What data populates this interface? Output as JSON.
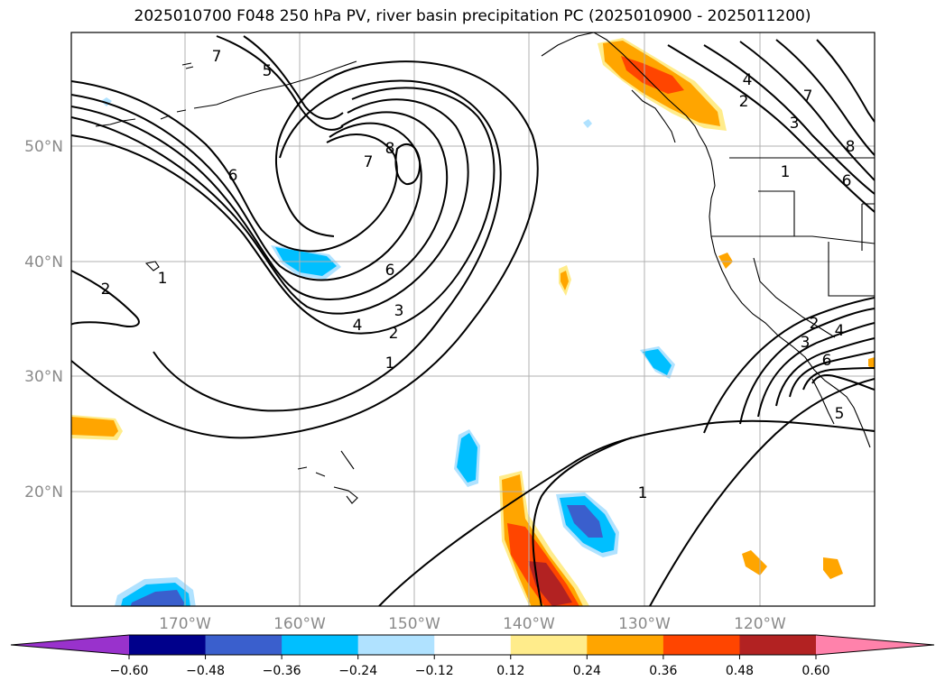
{
  "title": "2025010700 F048 250 hPa PV, river basin precipitation PC (2025010900 - 2025011200)",
  "map": {
    "lat_labels": [
      "50°N",
      "40°N",
      "30°N",
      "20°N"
    ],
    "lon_labels": [
      "170°W",
      "160°W",
      "150°W",
      "140°W",
      "130°W",
      "120°W"
    ],
    "contour_labels": [
      "7",
      "5",
      "8",
      "7",
      "6",
      "2",
      "1",
      "6",
      "4",
      "3",
      "2",
      "1",
      "1",
      "4",
      "2",
      "3",
      "1",
      "7",
      "6",
      "8",
      "2",
      "4",
      "6",
      "5",
      "3"
    ]
  },
  "colorbar": {
    "colors": [
      "#9932cc",
      "#00008b",
      "#3a5fcd",
      "#00bfff",
      "#b0e2ff",
      "#ffffff",
      "#ffec8b",
      "#ffa500",
      "#ff4500",
      "#b22222",
      "#ff82ab"
    ],
    "tick_labels": [
      "−0.60",
      "−0.48",
      "−0.36",
      "−0.24",
      "−0.12",
      "0.12",
      "0.24",
      "0.36",
      "0.48",
      "0.60"
    ]
  },
  "colors": {
    "pv_contour": "#000000",
    "grid": "#b0b0b0",
    "coast": "#000000"
  }
}
